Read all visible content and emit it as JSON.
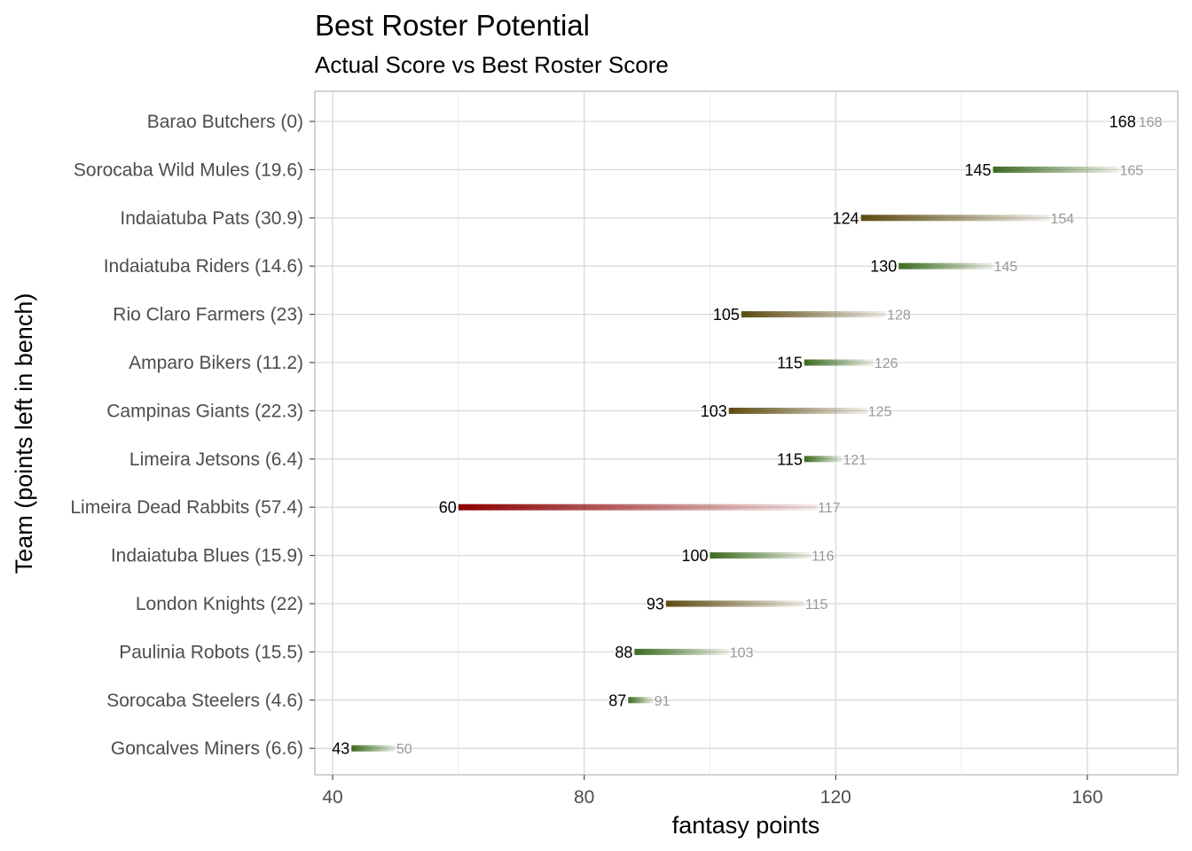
{
  "chart_data": {
    "type": "bar",
    "title": "Best Roster Potential",
    "subtitle": "Actual Score vs Best Roster Score",
    "xlabel": "fantasy points",
    "ylabel": "Team (points left in bench)",
    "xlim": [
      37,
      172
    ],
    "xticks": [
      40,
      80,
      120,
      160
    ],
    "grid": true,
    "colors": {
      "good": "#3d6b1f",
      "mid": "#5c4a10",
      "bad": "#8b0000",
      "actual_label": "#000000",
      "best_label": "#999999"
    },
    "rows": [
      {
        "team": "Barao Butchers (0)",
        "actual": 168,
        "best": 168,
        "actual_label": "168",
        "best_label": "168"
      },
      {
        "team": "Sorocaba Wild Mules (19.6)",
        "actual": 145,
        "best": 165,
        "actual_label": "145",
        "best_label": "165"
      },
      {
        "team": "Indaiatuba Pats (30.9)",
        "actual": 124,
        "best": 154,
        "actual_label": "124",
        "best_label": "154"
      },
      {
        "team": "Indaiatuba Riders (14.6)",
        "actual": 130,
        "best": 145,
        "actual_label": "130",
        "best_label": "145"
      },
      {
        "team": "Rio Claro Farmers (23)",
        "actual": 105,
        "best": 128,
        "actual_label": "105",
        "best_label": "128"
      },
      {
        "team": "Amparo Bikers (11.2)",
        "actual": 115,
        "best": 126,
        "actual_label": "115",
        "best_label": "126"
      },
      {
        "team": "Campinas Giants (22.3)",
        "actual": 103,
        "best": 125,
        "actual_label": "103",
        "best_label": "125"
      },
      {
        "team": "Limeira Jetsons (6.4)",
        "actual": 115,
        "best": 121,
        "actual_label": "115",
        "best_label": "121"
      },
      {
        "team": "Limeira Dead Rabbits (57.4)",
        "actual": 60,
        "best": 117,
        "actual_label": "60",
        "best_label": "117"
      },
      {
        "team": "Indaiatuba Blues (15.9)",
        "actual": 100,
        "best": 116,
        "actual_label": "100",
        "best_label": "116"
      },
      {
        "team": "London Knights (22)",
        "actual": 93,
        "best": 115,
        "actual_label": "93",
        "best_label": "115"
      },
      {
        "team": "Paulinia Robots (15.5)",
        "actual": 88,
        "best": 103,
        "actual_label": "88",
        "best_label": "103"
      },
      {
        "team": "Sorocaba Steelers (4.6)",
        "actual": 87,
        "best": 91,
        "actual_label": "87",
        "best_label": "91"
      },
      {
        "team": "Goncalves Miners (6.6)",
        "actual": 43,
        "best": 50,
        "actual_label": "43",
        "best_label": "50"
      }
    ]
  }
}
